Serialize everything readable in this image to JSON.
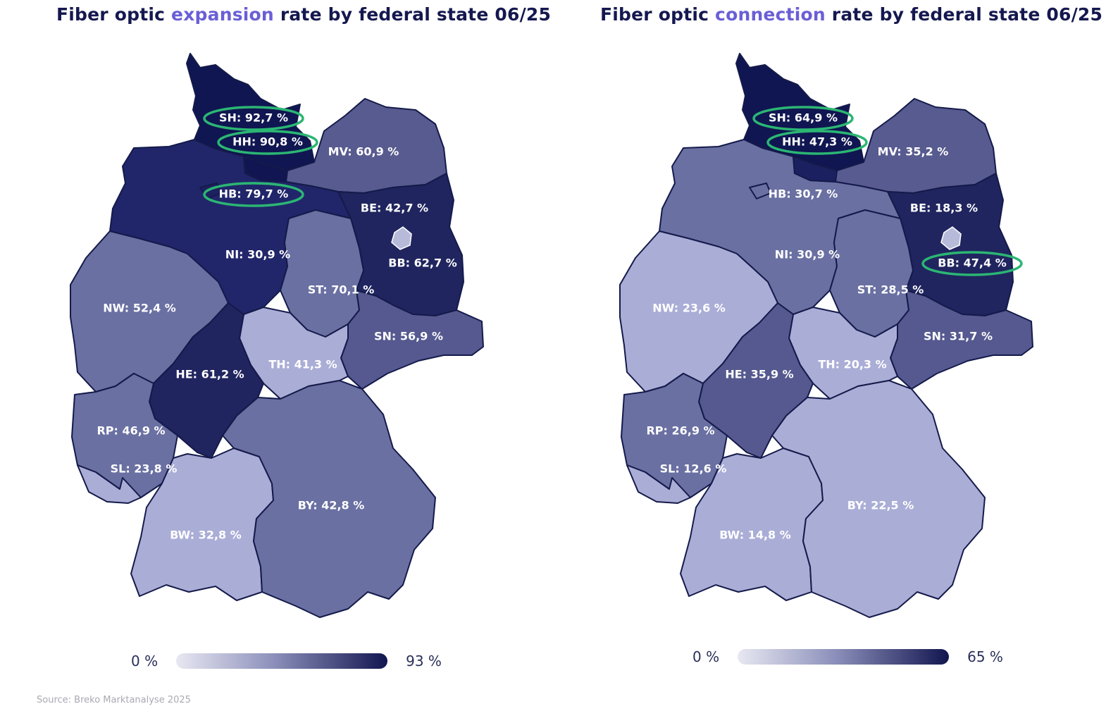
{
  "left": {
    "title_pre": "Fiber optic ",
    "title_hl": "expansion",
    "title_post": " rate by federal state 06/25",
    "legend_min": "0 %",
    "legend_max": "93 %",
    "states": {
      "SH": {
        "label": "SH: 92,7 %",
        "value": 92.7,
        "color": "#101651",
        "ring": true
      },
      "HH": {
        "label": "HH: 90,8 %",
        "value": 90.8,
        "color": "#111652",
        "ring": true
      },
      "HB": {
        "label": "HB: 79,7 %",
        "value": 79.7,
        "color": "#1d2160",
        "ring": true
      },
      "MV": {
        "label": "MV: 60,9 %",
        "value": 60.9,
        "color": "#585b8f",
        "ring": false
      },
      "BE": {
        "label": "BE: 42,7 %",
        "value": 42.7,
        "color": "#b7bbd9",
        "ring": false
      },
      "BB": {
        "label": "BB: 62,7 %",
        "value": 62.7,
        "color": "#20255f",
        "ring": false
      },
      "NI": {
        "label": "NI: 30,9 %",
        "value": 30.9,
        "color": "#21266a",
        "ring": false
      },
      "ST": {
        "label": "ST: 70,1 %",
        "value": 70.1,
        "color": "#6a70a2",
        "ring": false
      },
      "NW": {
        "label": "NW: 52,4 %",
        "value": 52.4,
        "color": "#6a70a2",
        "ring": false
      },
      "SN": {
        "label": "SN: 56,9 %",
        "value": 56.9,
        "color": "#55598f",
        "ring": false
      },
      "TH": {
        "label": "TH: 41,3 %",
        "value": 41.3,
        "color": "#aaadd6",
        "ring": false
      },
      "HE": {
        "label": "HE: 61,2 %",
        "value": 61.2,
        "color": "#20245f",
        "ring": false
      },
      "RP": {
        "label": "RP: 46,9 %",
        "value": 46.9,
        "color": "#6a70a2",
        "ring": false
      },
      "SL": {
        "label": "SL: 23,8 %",
        "value": 23.8,
        "color": "#aaadd6",
        "ring": false
      },
      "BY": {
        "label": "BY: 42,8 %",
        "value": 42.8,
        "color": "#6a70a2",
        "ring": false
      },
      "BW": {
        "label": "BW: 32,8 %",
        "value": 32.8,
        "color": "#aaadd6",
        "ring": false
      }
    }
  },
  "right": {
    "title_pre": "Fiber optic ",
    "title_hl": "connection",
    "title_post": " rate by federal state 06/25",
    "legend_min": "0 %",
    "legend_max": "65 %",
    "states": {
      "SH": {
        "label": "SH: 64,9 %",
        "value": 64.9,
        "color": "#101651",
        "ring": true
      },
      "HH": {
        "label": "HH: 47,3 %",
        "value": 47.3,
        "color": "#1b2060",
        "ring": true
      },
      "HB": {
        "label": "HB: 30,7 %",
        "value": 30.7,
        "color": "#6a70a2",
        "ring": false
      },
      "MV": {
        "label": "MV: 35,2 %",
        "value": 35.2,
        "color": "#585b8f",
        "ring": false
      },
      "BE": {
        "label": "BE: 18,3 %",
        "value": 18.3,
        "color": "#b7bbd9",
        "ring": false
      },
      "BB": {
        "label": "BB: 47,4 %",
        "value": 47.4,
        "color": "#20255f",
        "ring": true
      },
      "NI": {
        "label": "NI: 30,9 %",
        "value": 30.9,
        "color": "#6a70a2",
        "ring": false
      },
      "ST": {
        "label": "ST: 28,5 %",
        "value": 28.5,
        "color": "#6a70a2",
        "ring": false
      },
      "NW": {
        "label": "NW: 23,6 %",
        "value": 23.6,
        "color": "#aaadd6",
        "ring": false
      },
      "SN": {
        "label": "SN: 31,7 %",
        "value": 31.7,
        "color": "#55598f",
        "ring": false
      },
      "TH": {
        "label": "TH: 20,3 %",
        "value": 20.3,
        "color": "#aaadd6",
        "ring": false
      },
      "HE": {
        "label": "HE: 35,9 %",
        "value": 35.9,
        "color": "#55598f",
        "ring": false
      },
      "RP": {
        "label": "RP: 26,9 %",
        "value": 26.9,
        "color": "#6a70a2",
        "ring": false
      },
      "SL": {
        "label": "SL: 12,6 %",
        "value": 12.6,
        "color": "#aaadd6",
        "ring": false
      },
      "BY": {
        "label": "BY: 22,5 %",
        "value": 22.5,
        "color": "#aaadd6",
        "ring": false
      },
      "BW": {
        "label": "BW: 14,8 %",
        "value": 14.8,
        "color": "#aaadd6",
        "ring": false
      }
    }
  },
  "source": "Source: Breko Marktanalyse 2025"
}
